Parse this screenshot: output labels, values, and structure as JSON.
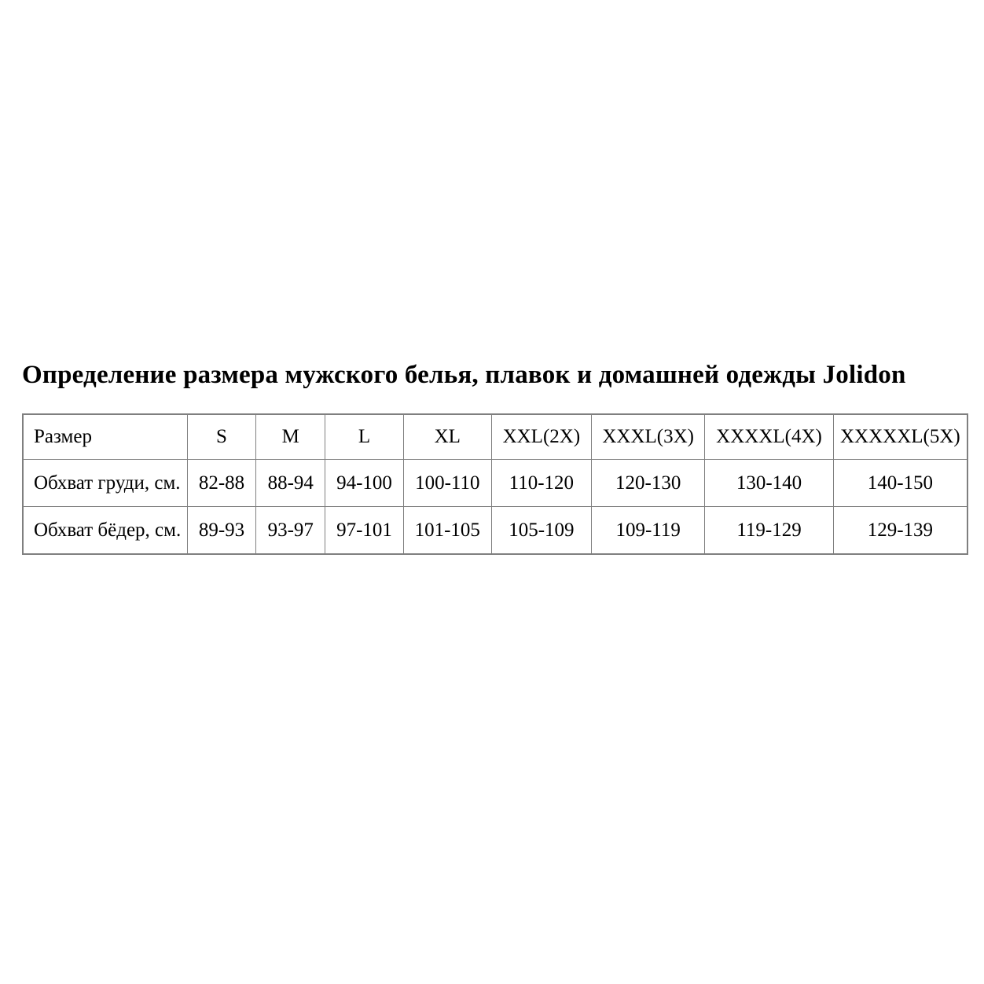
{
  "page": {
    "title": "Определение размера мужского белья, плавок и домашней одежды Jolidon"
  },
  "colors": {
    "background": "#ffffff",
    "text": "#000000",
    "table_border": "#7f7f7f"
  },
  "table": {
    "columns": [
      "Размер",
      "S",
      "M",
      "L",
      "XL",
      "XXL(2X)",
      "XXXL(3X)",
      "XXXXL(4X)",
      "XXXXXL(5X)"
    ],
    "rows": [
      {
        "label": "Обхват груди, см.",
        "values": [
          "82-88",
          "88-94",
          "94-100",
          "100-110",
          "110-120",
          "120-130",
          "130-140",
          "140-150"
        ]
      },
      {
        "label": "Обхват бёдер, см.",
        "values": [
          "89-93",
          "93-97",
          "97-101",
          "101-105",
          "105-109",
          "109-119",
          "119-129",
          "129-139"
        ]
      }
    ]
  }
}
